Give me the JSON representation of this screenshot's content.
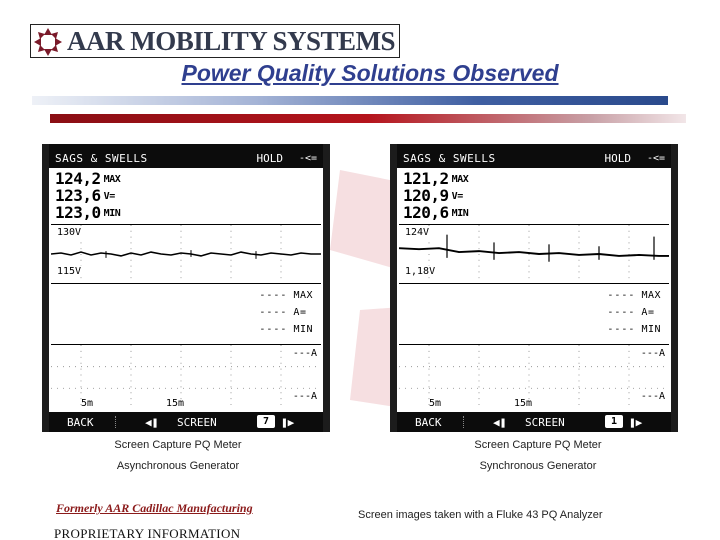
{
  "header": {
    "logo_text": "AAR MOBILITY SYSTEMS",
    "page_title": "Power Quality Solutions Observed"
  },
  "colors": {
    "title": "#2f3f8f",
    "blue_bar": "#2a4a8c",
    "red_bar": "#b5141c",
    "logo_mark": "#7a1a2a",
    "meter_frame": "#1c1c1c"
  },
  "screens": [
    {
      "mode_title": "SAGS & SWELLS",
      "hold_label": "HOLD",
      "battery_icon": "battery-icon",
      "max_value": "124,2",
      "max_unit": "MAX",
      "avg_value": "123,6",
      "avg_unit": "V=",
      "min_value": "123,0",
      "min_unit": "MIN",
      "upper_limit": "130V",
      "lower_limit": "115V",
      "current_max_dashes": "----",
      "current_max_label": "MAX",
      "current_avg_dashes": "----",
      "current_avg_label": "A=",
      "current_min_dashes": "----",
      "current_min_label": "MIN",
      "amp_top": "---A",
      "amp_bottom": "---A",
      "time_div_left": "5m",
      "time_div_right": "15m",
      "back_key": "BACK",
      "prev_icon": "previous-icon",
      "screen_key": "SCREEN",
      "page_number": "7",
      "next_icon": "next-icon"
    },
    {
      "mode_title": "SAGS & SWELLS",
      "hold_label": "HOLD",
      "battery_icon": "battery-icon",
      "max_value": "121,2",
      "max_unit": "MAX",
      "avg_value": "120,9",
      "avg_unit": "V=",
      "min_value": "120,6",
      "min_unit": "MIN",
      "upper_limit": "124V",
      "lower_limit": "1,18V",
      "current_max_dashes": "----",
      "current_max_label": "MAX",
      "current_avg_dashes": "----",
      "current_avg_label": "A=",
      "current_min_dashes": "----",
      "current_min_label": "MIN",
      "amp_top": "---A",
      "amp_bottom": "---A",
      "time_div_left": "5m",
      "time_div_right": "15m",
      "back_key": "BACK",
      "prev_icon": "previous-icon",
      "screen_key": "SCREEN",
      "page_number": "1",
      "next_icon": "next-icon"
    }
  ],
  "captions": {
    "left_line1": "Screen Capture PQ Meter",
    "left_line2": "Asynchronous Generator",
    "right_line1": "Screen Capture PQ Meter",
    "right_line2": "Synchronous Generator"
  },
  "footer": {
    "formerly": "Formerly AAR Cadillac Manufacturing",
    "proprietary": "PROPRIETARY INFORMATION",
    "analyzer_note": "Screen images taken with a Fluke 43 PQ Analyzer"
  }
}
